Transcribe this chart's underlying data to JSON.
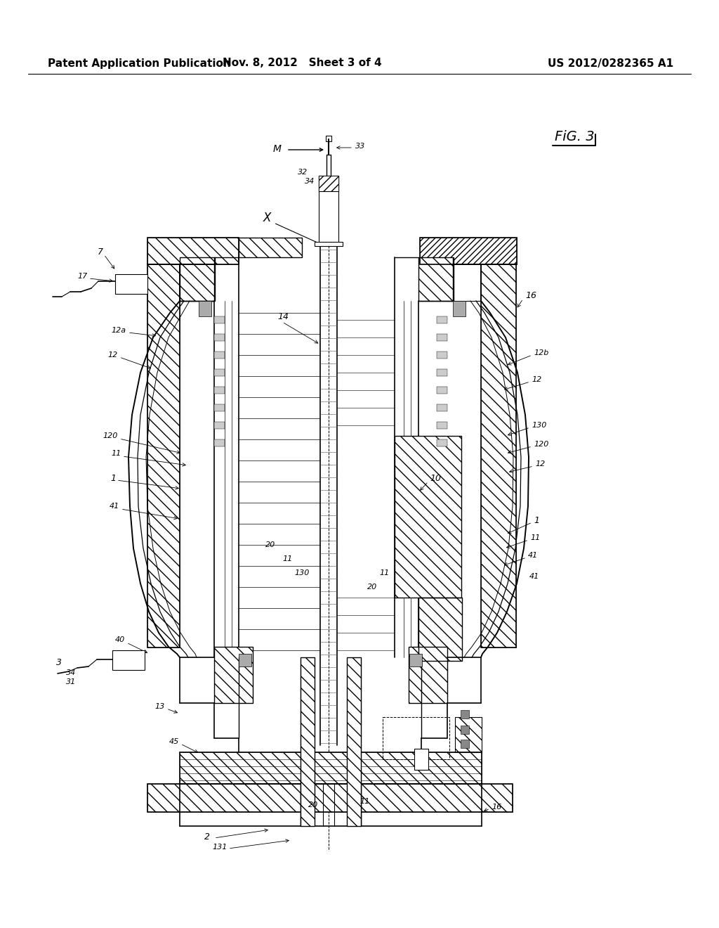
{
  "bg_color": "#ffffff",
  "header_left": "Patent Application Publication",
  "header_mid": "Nov. 8, 2012   Sheet 3 of 4",
  "header_right": "US 2012/0282365 A1",
  "fig_label": "FiG. 3",
  "title_fontsize": 12,
  "label_fontsize": 9
}
